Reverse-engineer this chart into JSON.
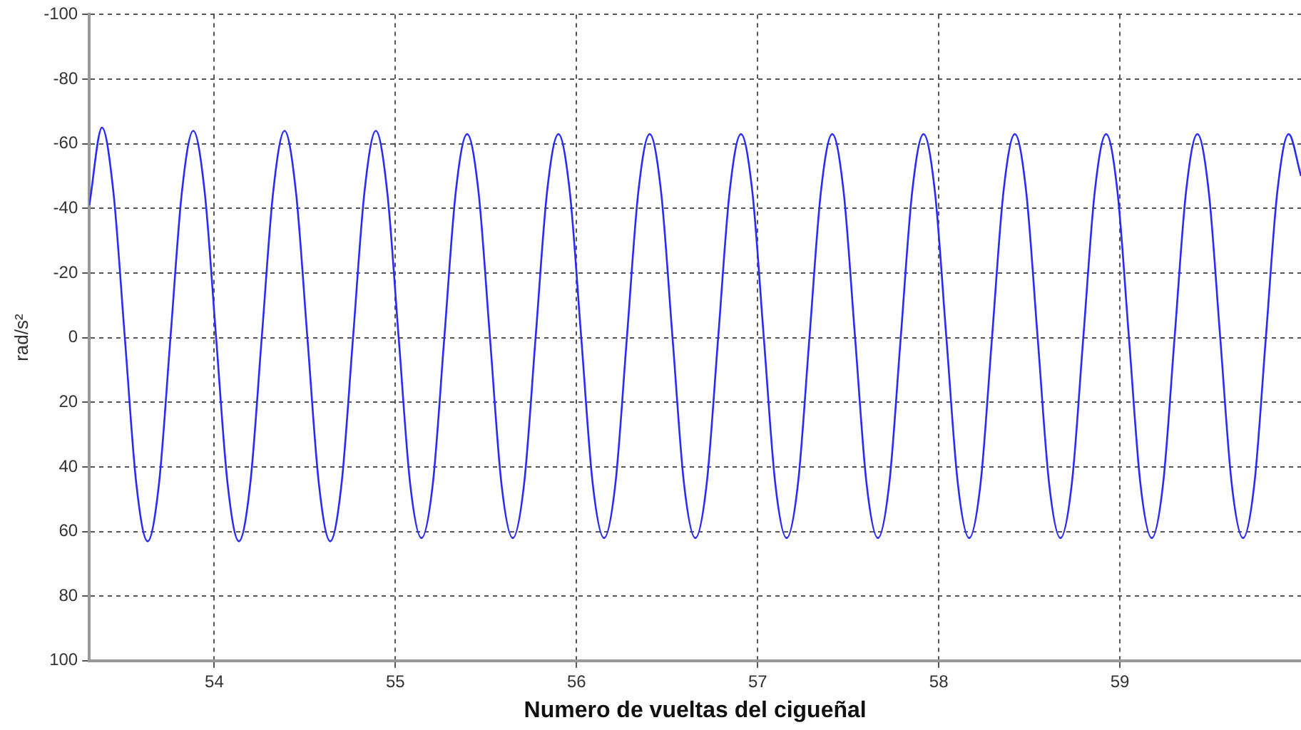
{
  "chart_data": {
    "type": "line",
    "xlabel": "Numero de vueltas del cigueñal",
    "ylabel": "rad/s²",
    "xlim": [
      53.31,
      60
    ],
    "xticks": [
      54,
      55,
      56,
      57,
      58,
      59
    ],
    "ylim": [
      100,
      -100
    ],
    "yticks": [
      -100,
      -80,
      -60,
      -40,
      -20,
      0,
      20,
      40,
      60,
      80,
      100
    ],
    "grid": true,
    "legend": false,
    "marker": "none",
    "line_style": "solid",
    "series": [
      {
        "color": "#2a2aff",
        "x": [
          53.31,
          53.38,
          53.443,
          53.506,
          53.569,
          53.632,
          53.695,
          53.758,
          53.821,
          53.884,
          53.947,
          54.01,
          54.073,
          54.136,
          54.199,
          54.262,
          54.325,
          54.388,
          54.451,
          54.514,
          54.577,
          54.64,
          54.703,
          54.766,
          54.829,
          54.892,
          54.955,
          55.018,
          55.081,
          55.144,
          55.207,
          55.27,
          55.333,
          55.396,
          55.459,
          55.522,
          55.585,
          55.648,
          55.711,
          55.774,
          55.837,
          55.9,
          55.963,
          56.026,
          56.089,
          56.152,
          56.215,
          56.278,
          56.341,
          56.404,
          56.467,
          56.53,
          56.593,
          56.656,
          56.719,
          56.782,
          56.845,
          56.908,
          56.971,
          57.034,
          57.097,
          57.16,
          57.223,
          57.286,
          57.349,
          57.412,
          57.475,
          57.538,
          57.601,
          57.664,
          57.727,
          57.79,
          57.853,
          57.916,
          57.979,
          58.042,
          58.105,
          58.168,
          58.231,
          58.294,
          58.357,
          58.42,
          58.483,
          58.546,
          58.609,
          58.672,
          58.735,
          58.798,
          58.861,
          58.924,
          58.987,
          59.05,
          59.113,
          59.176,
          59.239,
          59.302,
          59.365,
          59.428,
          59.491,
          59.554,
          59.617,
          59.68,
          59.743,
          59.806,
          59.869,
          59.932,
          60
        ],
        "values": [
          -41,
          -65,
          -45,
          0,
          45,
          63,
          45,
          0,
          -45,
          -64,
          -45,
          0,
          45,
          63,
          45,
          0,
          -45,
          -64,
          -45,
          0,
          45,
          63,
          45,
          0,
          -45,
          -64,
          -45,
          0,
          45,
          62,
          45,
          0,
          -45,
          -63,
          -45,
          0,
          45,
          62,
          45,
          0,
          -45,
          -63,
          -45,
          0,
          45,
          62,
          45,
          0,
          -45,
          -63,
          -45,
          0,
          45,
          62,
          45,
          0,
          -45,
          -63,
          -45,
          0,
          45,
          62,
          45,
          0,
          -45,
          -63,
          -45,
          0,
          45,
          62,
          45,
          0,
          -45,
          -63,
          -45,
          0,
          45,
          62,
          45,
          0,
          -45,
          -63,
          -45,
          0,
          45,
          62,
          45,
          0,
          -45,
          -63,
          -45,
          0,
          45,
          62,
          45,
          0,
          -45,
          -63,
          -45,
          0,
          45,
          62,
          45,
          0,
          -45,
          -63,
          -50
        ]
      }
    ]
  }
}
